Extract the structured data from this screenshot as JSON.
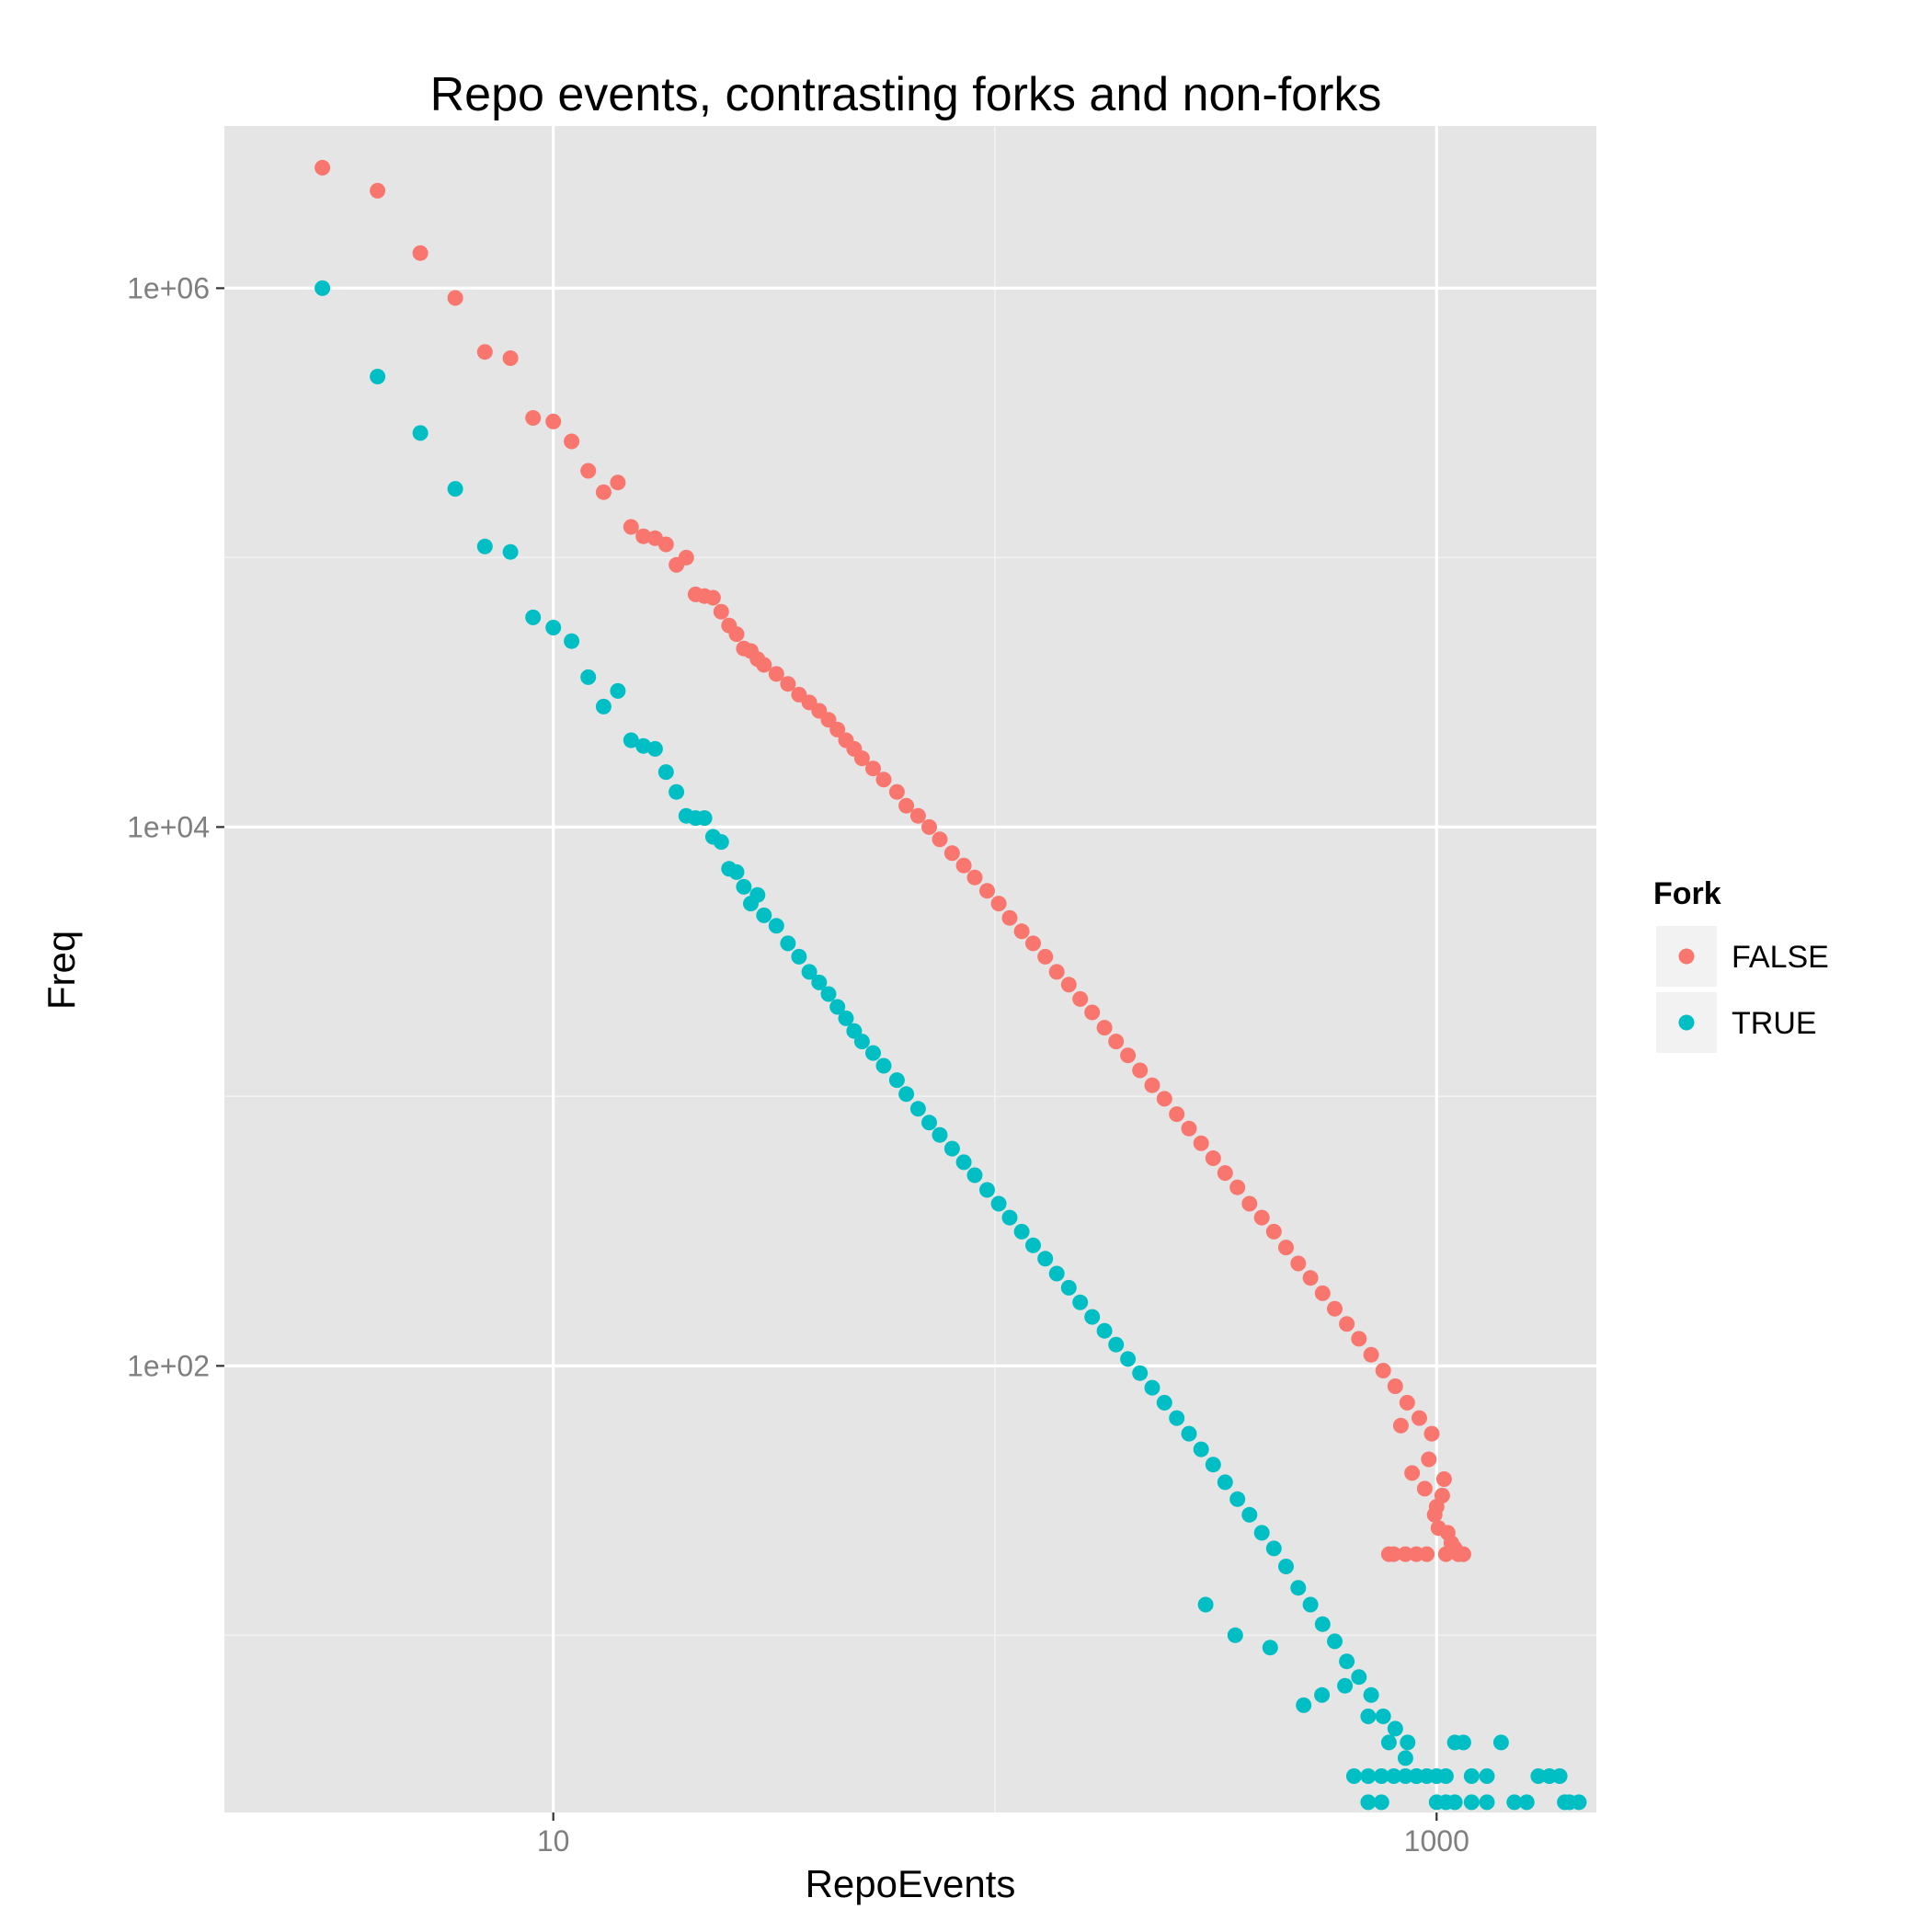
{
  "chart_data": {
    "type": "scatter",
    "title": "Repo events, contrasting forks and non-forks",
    "xlabel": "RepoEvents",
    "ylabel": "Freq",
    "xscale": "log10",
    "yscale": "log10",
    "xlim": [
      1.8,
      2300
    ],
    "ylim": [
      2.2,
      4000000
    ],
    "x_ticks": [
      10,
      1000
    ],
    "x_tick_labels": [
      "10",
      "1000"
    ],
    "y_ticks": [
      100,
      10000,
      1000000
    ],
    "y_tick_labels": [
      "1e+02",
      "1e+04",
      "1e+06"
    ],
    "grid": true,
    "legend": {
      "title": "Fork",
      "position": "right",
      "entries": [
        "FALSE",
        "TRUE"
      ]
    },
    "series": [
      {
        "name": "FALSE",
        "color": "#F8766D",
        "points": [
          [
            3,
            2800000
          ],
          [
            4,
            2300000
          ],
          [
            5,
            1350000
          ],
          [
            6,
            920000
          ],
          [
            7,
            580000
          ],
          [
            8,
            550000
          ],
          [
            9,
            330000
          ],
          [
            10,
            320000
          ],
          [
            11,
            270000
          ],
          [
            12,
            210000
          ],
          [
            13,
            175000
          ],
          [
            14,
            190000
          ],
          [
            15,
            130000
          ],
          [
            16,
            120000
          ],
          [
            17,
            118000
          ],
          [
            18,
            112000
          ],
          [
            19,
            94000
          ],
          [
            20,
            100000
          ],
          [
            21,
            73000
          ],
          [
            22,
            72000
          ],
          [
            23,
            71000
          ],
          [
            24,
            63000
          ],
          [
            25,
            56000
          ],
          [
            26,
            52000
          ],
          [
            27,
            46000
          ],
          [
            28,
            45000
          ],
          [
            29,
            42000
          ],
          [
            30,
            40000
          ],
          [
            32,
            37000
          ],
          [
            34,
            34000
          ],
          [
            36,
            31000
          ],
          [
            38,
            29000
          ],
          [
            40,
            27000
          ],
          [
            42,
            25000
          ],
          [
            44,
            23000
          ],
          [
            46,
            21000
          ],
          [
            48,
            19500
          ],
          [
            50,
            18000
          ],
          [
            53,
            16500
          ],
          [
            56,
            15000
          ],
          [
            60,
            13500
          ],
          [
            63,
            12000
          ],
          [
            67,
            11000
          ],
          [
            71,
            10000
          ],
          [
            75,
            9000
          ],
          [
            80,
            8000
          ],
          [
            85,
            7200
          ],
          [
            90,
            6500
          ],
          [
            96,
            5800
          ],
          [
            102,
            5200
          ],
          [
            108,
            4600
          ],
          [
            115,
            4100
          ],
          [
            122,
            3700
          ],
          [
            130,
            3300
          ],
          [
            138,
            2900
          ],
          [
            147,
            2600
          ],
          [
            156,
            2300
          ],
          [
            166,
            2050
          ],
          [
            177,
            1800
          ],
          [
            188,
            1600
          ],
          [
            200,
            1420
          ],
          [
            213,
            1250
          ],
          [
            227,
            1100
          ],
          [
            242,
            980
          ],
          [
            258,
            860
          ],
          [
            275,
            760
          ],
          [
            293,
            670
          ],
          [
            312,
            590
          ],
          [
            332,
            520
          ],
          [
            354,
            460
          ],
          [
            377,
            400
          ],
          [
            402,
            355
          ],
          [
            428,
            315
          ],
          [
            456,
            275
          ],
          [
            486,
            240
          ],
          [
            518,
            212
          ],
          [
            552,
            186
          ],
          [
            588,
            163
          ],
          [
            626,
            143
          ],
          [
            667,
            126
          ],
          [
            711,
            110
          ],
          [
            757,
            96
          ],
          [
            806,
            84
          ],
          [
            830,
            60
          ],
          [
            858,
            73
          ],
          [
            880,
            40
          ],
          [
            914,
            64
          ],
          [
            940,
            35
          ],
          [
            960,
            45
          ],
          [
            975,
            56
          ],
          [
            990,
            28
          ],
          [
            1000,
            30
          ],
          [
            1010,
            25
          ],
          [
            1030,
            33
          ],
          [
            1040,
            38
          ],
          [
            1060,
            24
          ],
          [
            1080,
            22
          ],
          [
            1100,
            21
          ],
          [
            1120,
            20
          ],
          [
            1150,
            20
          ],
          [
            780,
            20
          ],
          [
            800,
            20
          ],
          [
            850,
            20
          ],
          [
            900,
            20
          ],
          [
            950,
            20
          ],
          [
            1050,
            20
          ]
        ]
      },
      {
        "name": "TRUE",
        "color": "#00BFC4",
        "points": [
          [
            3,
            1000000
          ],
          [
            4,
            470000
          ],
          [
            5,
            290000
          ],
          [
            6,
            180000
          ],
          [
            7,
            110000
          ],
          [
            8,
            105000
          ],
          [
            9,
            60000
          ],
          [
            10,
            55000
          ],
          [
            11,
            49000
          ],
          [
            12,
            36000
          ],
          [
            13,
            28000
          ],
          [
            14,
            32000
          ],
          [
            15,
            21000
          ],
          [
            16,
            20000
          ],
          [
            17,
            19500
          ],
          [
            18,
            16000
          ],
          [
            19,
            13500
          ],
          [
            20,
            11000
          ],
          [
            21,
            10800
          ],
          [
            22,
            10800
          ],
          [
            23,
            9200
          ],
          [
            24,
            8800
          ],
          [
            25,
            7000
          ],
          [
            26,
            6800
          ],
          [
            27,
            6000
          ],
          [
            28,
            5200
          ],
          [
            29,
            5600
          ],
          [
            30,
            4700
          ],
          [
            32,
            4300
          ],
          [
            34,
            3700
          ],
          [
            36,
            3300
          ],
          [
            38,
            2900
          ],
          [
            40,
            2650
          ],
          [
            42,
            2400
          ],
          [
            44,
            2150
          ],
          [
            46,
            1950
          ],
          [
            48,
            1750
          ],
          [
            50,
            1600
          ],
          [
            53,
            1450
          ],
          [
            56,
            1300
          ],
          [
            60,
            1150
          ],
          [
            63,
            1020
          ],
          [
            67,
            900
          ],
          [
            71,
            800
          ],
          [
            75,
            720
          ],
          [
            80,
            640
          ],
          [
            85,
            570
          ],
          [
            90,
            510
          ],
          [
            96,
            450
          ],
          [
            102,
            400
          ],
          [
            108,
            355
          ],
          [
            115,
            315
          ],
          [
            122,
            280
          ],
          [
            130,
            250
          ],
          [
            138,
            220
          ],
          [
            147,
            195
          ],
          [
            156,
            172
          ],
          [
            166,
            152
          ],
          [
            177,
            135
          ],
          [
            188,
            120
          ],
          [
            200,
            106
          ],
          [
            213,
            94
          ],
          [
            227,
            83
          ],
          [
            242,
            73
          ],
          [
            258,
            64
          ],
          [
            275,
            56
          ],
          [
            293,
            49
          ],
          [
            312,
            43
          ],
          [
            332,
            37
          ],
          [
            354,
            32
          ],
          [
            377,
            28
          ],
          [
            402,
            24
          ],
          [
            428,
            21
          ],
          [
            456,
            18
          ],
          [
            486,
            15
          ],
          [
            518,
            13
          ],
          [
            552,
            11
          ],
          [
            588,
            9.5
          ],
          [
            626,
            8
          ],
          [
            667,
            7
          ],
          [
            711,
            6
          ],
          [
            757,
            5
          ],
          [
            806,
            4.5
          ],
          [
            860,
            4
          ],
          [
            300,
            13
          ],
          [
            350,
            10
          ],
          [
            420,
            9
          ],
          [
            500,
            5.5
          ],
          [
            550,
            6
          ],
          [
            620,
            6.5
          ],
          [
            700,
            5
          ],
          [
            780,
            4
          ],
          [
            850,
            3.5
          ],
          [
            900,
            3
          ],
          [
            950,
            3
          ],
          [
            1000,
            3
          ],
          [
            1050,
            3
          ],
          [
            1100,
            4
          ],
          [
            1150,
            4
          ],
          [
            1200,
            3
          ],
          [
            1300,
            3
          ],
          [
            1400,
            4
          ],
          [
            650,
            3
          ],
          [
            700,
            3
          ],
          [
            750,
            3
          ],
          [
            800,
            3
          ],
          [
            850,
            3
          ],
          [
            900,
            3
          ],
          [
            1000,
            2.4
          ],
          [
            1050,
            2.4
          ],
          [
            1100,
            2.4
          ],
          [
            1200,
            2.4
          ],
          [
            1300,
            2.4
          ],
          [
            700,
            2.4
          ],
          [
            750,
            2.4
          ],
          [
            1500,
            2.4
          ],
          [
            1600,
            2.4
          ],
          [
            1700,
            3
          ],
          [
            1800,
            3
          ],
          [
            1900,
            3
          ],
          [
            2000,
            2.4
          ],
          [
            2100,
            2.4
          ],
          [
            1950,
            2.4
          ]
        ]
      }
    ]
  }
}
